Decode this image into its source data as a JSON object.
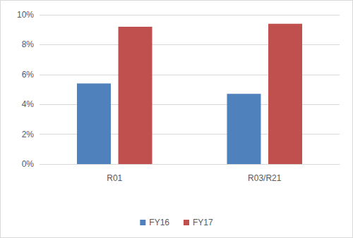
{
  "chart_data": {
    "type": "bar",
    "categories": [
      "R01",
      "R03/R21"
    ],
    "series": [
      {
        "name": "FY16",
        "color": "#4f81bd",
        "values": [
          5.4,
          4.7
        ]
      },
      {
        "name": "FY17",
        "color": "#c0504d",
        "values": [
          9.2,
          9.4
        ]
      }
    ],
    "ylim": [
      0,
      10
    ],
    "yticks": [
      {
        "value": 0,
        "label": "0%"
      },
      {
        "value": 2,
        "label": "2%"
      },
      {
        "value": 4,
        "label": "4%"
      },
      {
        "value": 6,
        "label": "6%"
      },
      {
        "value": 8,
        "label": "8%"
      },
      {
        "value": 10,
        "label": "10%"
      }
    ],
    "grid": true,
    "legend": "bottom"
  }
}
